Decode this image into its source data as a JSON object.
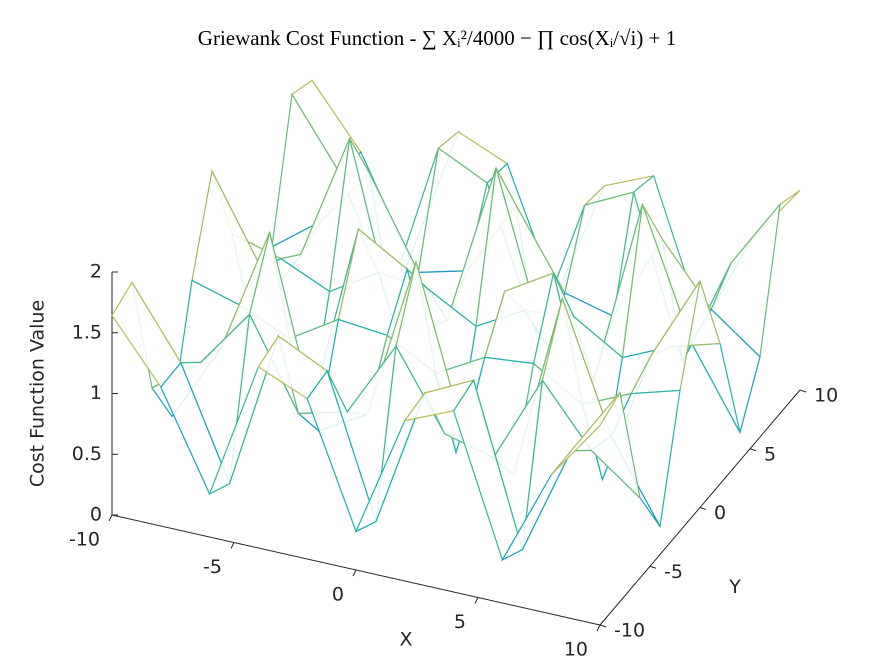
{
  "chart_data": {
    "type": "surface",
    "title": "Griewank Cost Function - ∑ Xᵢ²/4000 − ∏ cos(Xᵢ/√i) + 1",
    "x_label": "X",
    "y_label": "Y",
    "z_label": "Cost Function Value",
    "x": [
      -10,
      -8,
      -6,
      -4,
      -2,
      0,
      2,
      4,
      6,
      8,
      10
    ],
    "y": [
      -10,
      -8,
      -6,
      -4,
      -2,
      0,
      2,
      4,
      6,
      8,
      10
    ],
    "z": [
      [
        1.643,
        1.144,
        0.355,
        1.491,
        1.32,
        0.318,
        1.32,
        1.491,
        0.355,
        1.144,
        1.643
      ],
      [
        1.721,
        1.15,
        0.246,
        1.55,
        1.354,
        0.205,
        1.354,
        1.55,
        0.246,
        1.15,
        1.721
      ],
      [
        0.66,
        0.96,
        1.446,
        0.721,
        0.824,
        1.455,
        0.824,
        0.721,
        1.446,
        0.96,
        0.66
      ],
      [
        0.231,
        0.881,
        1.926,
        0.386,
        0.609,
        1.955,
        0.609,
        0.386,
        1.926,
        0.881,
        0.231
      ],
      [
        1.157,
        1.04,
        0.86,
        1.107,
        1.067,
        0.845,
        1.067,
        1.107,
        0.86,
        1.04,
        1.157
      ],
      [
        1.864,
        1.162,
        0.049,
        1.658,
        1.417,
        0,
        1.417,
        1.658,
        0.049,
        1.162,
        1.864
      ],
      [
        1.157,
        1.04,
        0.86,
        1.107,
        1.067,
        0.845,
        1.067,
        1.107,
        0.86,
        1.04,
        1.157
      ],
      [
        0.231,
        0.881,
        1.926,
        0.386,
        0.609,
        1.955,
        0.609,
        0.386,
        1.926,
        0.881,
        0.231
      ],
      [
        0.66,
        0.96,
        1.446,
        0.721,
        0.824,
        1.455,
        0.824,
        0.721,
        1.446,
        0.96,
        0.66
      ],
      [
        1.721,
        1.15,
        0.246,
        1.55,
        1.354,
        0.205,
        1.354,
        1.55,
        0.246,
        1.15,
        1.721
      ],
      [
        1.643,
        1.144,
        0.355,
        1.491,
        1.32,
        0.318,
        1.32,
        1.491,
        0.355,
        1.144,
        1.643
      ]
    ],
    "xlim": [
      -10,
      10
    ],
    "ylim": [
      -10,
      10
    ],
    "zlim": [
      0,
      2
    ],
    "xticks": [
      -10,
      -5,
      0,
      5,
      10
    ],
    "yticks": [
      -10,
      -5,
      0,
      5,
      10
    ],
    "zticks": [
      0,
      0.5,
      1,
      1.5,
      2
    ],
    "colormap": [
      "#352a87",
      "#0d75dc",
      "#1ab2b0",
      "#7ebf6e",
      "#e8b94a",
      "#f9fb0e"
    ]
  }
}
